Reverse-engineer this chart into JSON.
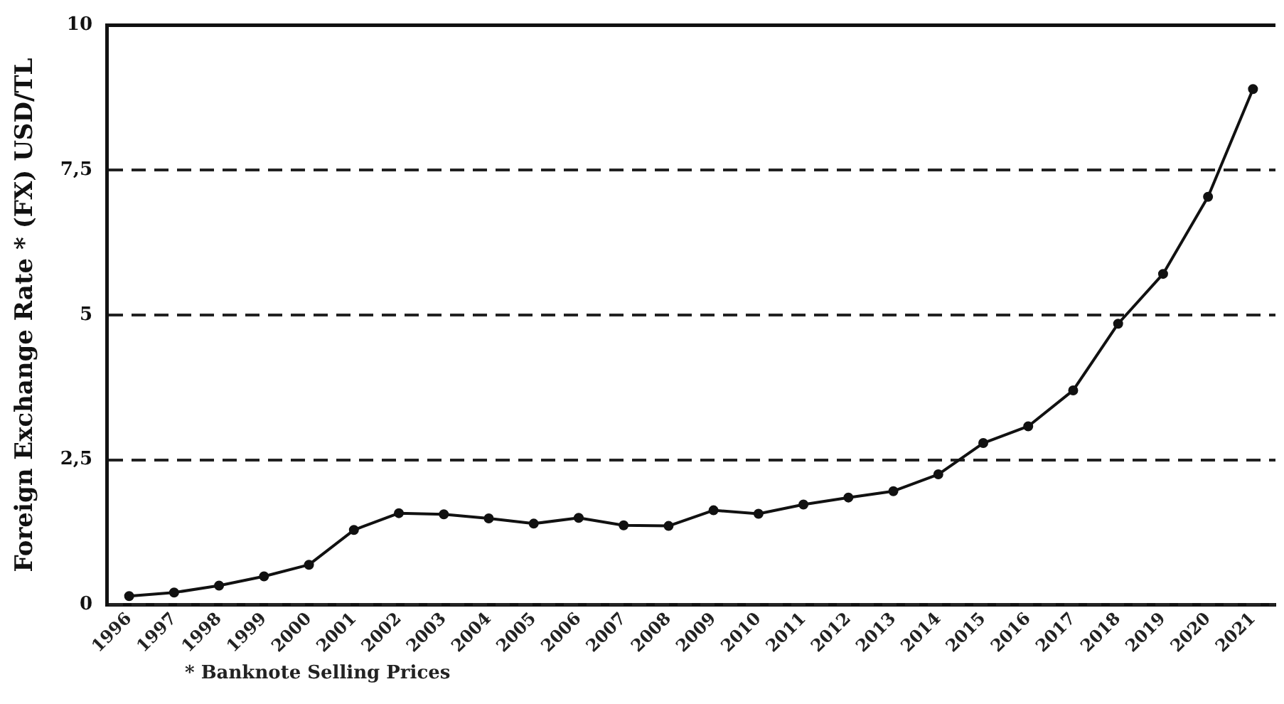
{
  "chart_data": {
    "type": "line",
    "ylabel": "Foreign Exchange Rate * (FX) USD/TL",
    "annotations": [
      "* Banknote Selling Prices"
    ],
    "categories": [
      "1996",
      "1997",
      "1998",
      "1999",
      "2000",
      "2001",
      "2002",
      "2003",
      "2004",
      "2005",
      "2006",
      "2007",
      "2008",
      "2009",
      "2010",
      "2011",
      "2012",
      "2013",
      "2014",
      "2015",
      "2016",
      "2017",
      "2018",
      "2019",
      "2020",
      "2021"
    ],
    "series": [
      {
        "color": "#111111",
        "values": [
          0.15,
          0.21,
          0.33,
          0.49,
          0.69,
          1.29,
          1.58,
          1.56,
          1.49,
          1.4,
          1.5,
          1.37,
          1.36,
          1.63,
          1.57,
          1.73,
          1.85,
          1.96,
          2.25,
          2.79,
          3.08,
          3.7,
          4.85,
          5.71,
          7.04,
          8.9
        ]
      }
    ],
    "ylim": [
      0,
      10
    ],
    "yticks": [
      0,
      {
        "value": 2.5,
        "label": "2,5"
      },
      5,
      {
        "value": 7.5,
        "label": "7,5"
      },
      10
    ],
    "grid": "y",
    "legend": false,
    "marker": "circle",
    "line_style": "solid"
  }
}
